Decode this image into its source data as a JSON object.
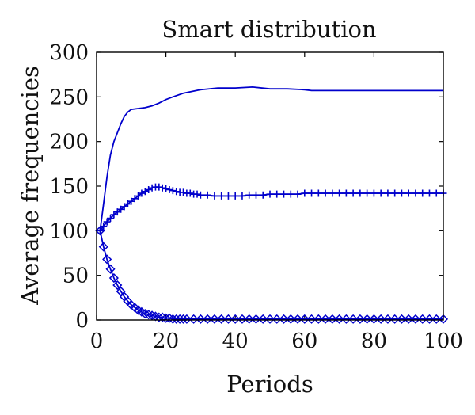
{
  "chart_data": {
    "type": "line",
    "title": "Smart distribution",
    "xlabel": "Periods",
    "ylabel": "Average frequencies",
    "xlim": [
      0,
      100
    ],
    "ylim": [
      0,
      300
    ],
    "xticks": [
      0,
      20,
      40,
      60,
      80,
      100
    ],
    "yticks": [
      0,
      50,
      100,
      150,
      200,
      250,
      300
    ],
    "grid": false,
    "legend": "none",
    "color": "#0000cc",
    "series": [
      {
        "marker": "none",
        "x": [
          1,
          2,
          3,
          4,
          5,
          6,
          7,
          8,
          9,
          10,
          12,
          14,
          16,
          18,
          20,
          22,
          25,
          30,
          35,
          40,
          45,
          50,
          55,
          60,
          62,
          65,
          70,
          80,
          90,
          100
        ],
        "values": [
          100,
          130,
          160,
          185,
          200,
          210,
          220,
          228,
          233,
          236,
          237,
          238,
          240,
          243,
          247,
          250,
          254,
          258,
          260,
          260,
          261,
          259,
          259,
          258,
          257,
          257,
          257,
          257,
          257,
          257
        ]
      },
      {
        "marker": "plus",
        "x": [
          1,
          2,
          3,
          4,
          5,
          6,
          7,
          8,
          9,
          10,
          11,
          12,
          13,
          14,
          15,
          16,
          17,
          18,
          19,
          20,
          21,
          22,
          23,
          24,
          25,
          26,
          27,
          28,
          29,
          30,
          32,
          34,
          36,
          38,
          40,
          42,
          44,
          46,
          48,
          50,
          52,
          54,
          56,
          58,
          60,
          62,
          64,
          66,
          68,
          70,
          72,
          74,
          76,
          78,
          80,
          82,
          84,
          86,
          88,
          90,
          92,
          94,
          96,
          98,
          100
        ],
        "values": [
          100,
          105,
          110,
          114,
          118,
          121,
          124,
          127,
          130,
          133,
          136,
          139,
          142,
          144,
          146,
          148,
          149,
          149,
          148,
          147,
          146,
          145,
          144,
          143,
          143,
          142,
          142,
          141,
          141,
          140,
          140,
          139,
          139,
          139,
          139,
          139,
          140,
          140,
          140,
          141,
          141,
          141,
          141,
          141,
          142,
          142,
          142,
          142,
          142,
          142,
          142,
          142,
          142,
          142,
          142,
          142,
          142,
          142,
          142,
          142,
          142,
          142,
          142,
          142,
          142
        ]
      },
      {
        "marker": "diamond",
        "x": [
          1,
          2,
          3,
          4,
          5,
          6,
          7,
          8,
          9,
          10,
          11,
          12,
          13,
          14,
          15,
          16,
          17,
          18,
          19,
          20,
          21,
          22,
          23,
          24,
          25,
          26,
          28,
          30,
          32,
          34,
          36,
          38,
          40,
          42,
          44,
          46,
          48,
          50,
          52,
          54,
          56,
          58,
          60,
          62,
          64,
          66,
          68,
          70,
          72,
          74,
          76,
          78,
          80,
          82,
          84,
          86,
          88,
          90,
          92,
          94,
          96,
          98,
          100
        ],
        "values": [
          100,
          82,
          68,
          57,
          47,
          39,
          32,
          26,
          21,
          17,
          14,
          11,
          9,
          7,
          6,
          5,
          4,
          3,
          3,
          2,
          2,
          1,
          1,
          1,
          1,
          1,
          1,
          1,
          1,
          1,
          1,
          1,
          1,
          1,
          1,
          1,
          1,
          1,
          1,
          1,
          1,
          1,
          1,
          1,
          1,
          1,
          1,
          1,
          1,
          1,
          1,
          1,
          1,
          1,
          1,
          1,
          1,
          1,
          1,
          1,
          1,
          1,
          1
        ]
      }
    ]
  }
}
